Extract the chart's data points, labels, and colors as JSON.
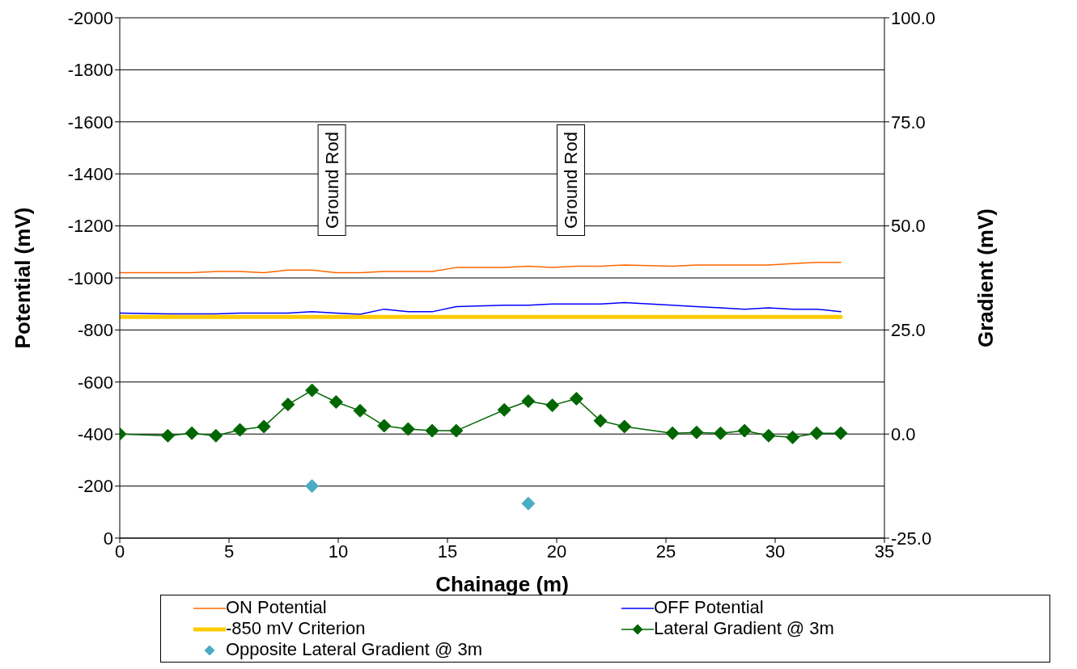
{
  "chart_data": {
    "type": "line",
    "xlabel": "Chainage (m)",
    "ylabel": "Potential (mV)",
    "y2label": "Gradient (mV)",
    "xlim": [
      0,
      35
    ],
    "xticks": [
      0,
      5,
      10,
      15,
      20,
      25,
      30,
      35
    ],
    "ylim": [
      0,
      -2000
    ],
    "yticks": [
      0,
      -200,
      -400,
      -600,
      -800,
      -1000,
      -1200,
      -1400,
      -1600,
      -1800,
      -2000
    ],
    "y2lim": [
      -25,
      100
    ],
    "y2ticks": [
      {
        "value": -25,
        "label": "-25.0"
      },
      {
        "value": 0,
        "label": "0.0"
      },
      {
        "value": 25,
        "label": "25.0"
      },
      {
        "value": 50,
        "label": "50.0"
      },
      {
        "value": 75,
        "label": "75.0"
      },
      {
        "value": 100,
        "label": "100.0"
      }
    ],
    "grid": "y",
    "legend": "bottom",
    "line_style": "solid",
    "series": [
      {
        "name": "ON Potential",
        "type": "line",
        "color": "#ff6600",
        "marker": "none",
        "x": [
          0,
          2.2,
          3.3,
          4.4,
          5.5,
          6.6,
          7.7,
          8.8,
          9.9,
          11,
          12.1,
          13.2,
          14.3,
          15.4,
          17.6,
          18.7,
          19.8,
          20.9,
          22,
          23.1,
          25.3,
          26.4,
          27.5,
          28.6,
          29.7,
          30.8,
          31.9,
          33
        ],
        "values": [
          -1020,
          -1020,
          -1020,
          -1025,
          -1025,
          -1020,
          -1030,
          -1030,
          -1020,
          -1020,
          -1025,
          -1025,
          -1025,
          -1040,
          -1040,
          -1045,
          -1040,
          -1045,
          -1045,
          -1050,
          -1045,
          -1050,
          -1050,
          -1050,
          -1050,
          -1055,
          -1060,
          -1060
        ]
      },
      {
        "name": "OFF Potential",
        "type": "line",
        "color": "#0000ff",
        "marker": "none",
        "x": [
          0,
          2.2,
          3.3,
          4.4,
          5.5,
          6.6,
          7.7,
          8.8,
          9.9,
          11,
          12.1,
          13.2,
          14.3,
          15.4,
          17.6,
          18.7,
          19.8,
          20.9,
          22,
          23.1,
          25.3,
          26.4,
          27.5,
          28.6,
          29.7,
          30.8,
          31.9,
          33
        ],
        "values": [
          -865,
          -862,
          -862,
          -862,
          -865,
          -865,
          -865,
          -870,
          -865,
          -860,
          -880,
          -870,
          -870,
          -890,
          -895,
          -895,
          -900,
          -900,
          -900,
          -905,
          -895,
          -890,
          -885,
          -880,
          -885,
          -880,
          -880,
          -870
        ]
      },
      {
        "name": "-850 mV Criterion",
        "type": "line",
        "color": "#ffcc00",
        "marker": "none",
        "x": [
          0,
          33
        ],
        "values": [
          -850,
          -850
        ]
      },
      {
        "name": "Lateral Gradient @ 3m",
        "type": "line",
        "axis": "y2",
        "color": "#006600",
        "marker": "diamond",
        "x": [
          0,
          2.2,
          3.3,
          4.4,
          5.5,
          6.6,
          7.7,
          8.8,
          9.9,
          11,
          12.1,
          13.2,
          14.3,
          15.4,
          17.6,
          18.7,
          19.8,
          20.9,
          22,
          23.1,
          25.3,
          26.4,
          27.5,
          28.6,
          29.7,
          30.8,
          31.9,
          33
        ],
        "values": [
          0,
          -0.4,
          0.2,
          -0.4,
          1.0,
          1.8,
          7.1,
          10.5,
          7.7,
          5.6,
          2.0,
          1.2,
          0.8,
          0.8,
          5.8,
          7.9,
          6.9,
          8.5,
          3.2,
          1.8,
          0.2,
          0.4,
          0.2,
          0.8,
          -0.4,
          -0.8,
          0.2,
          0.2
        ]
      },
      {
        "name": "Opposite Lateral Gradient @ 3m",
        "type": "scatter",
        "axis": "y2",
        "color": "#4bacc6",
        "marker": "diamond",
        "x": [
          8.8,
          18.7
        ],
        "values": [
          -12.5,
          -16.7
        ]
      }
    ],
    "annotations": [
      "Ground Rod",
      "Ground Rod"
    ]
  }
}
